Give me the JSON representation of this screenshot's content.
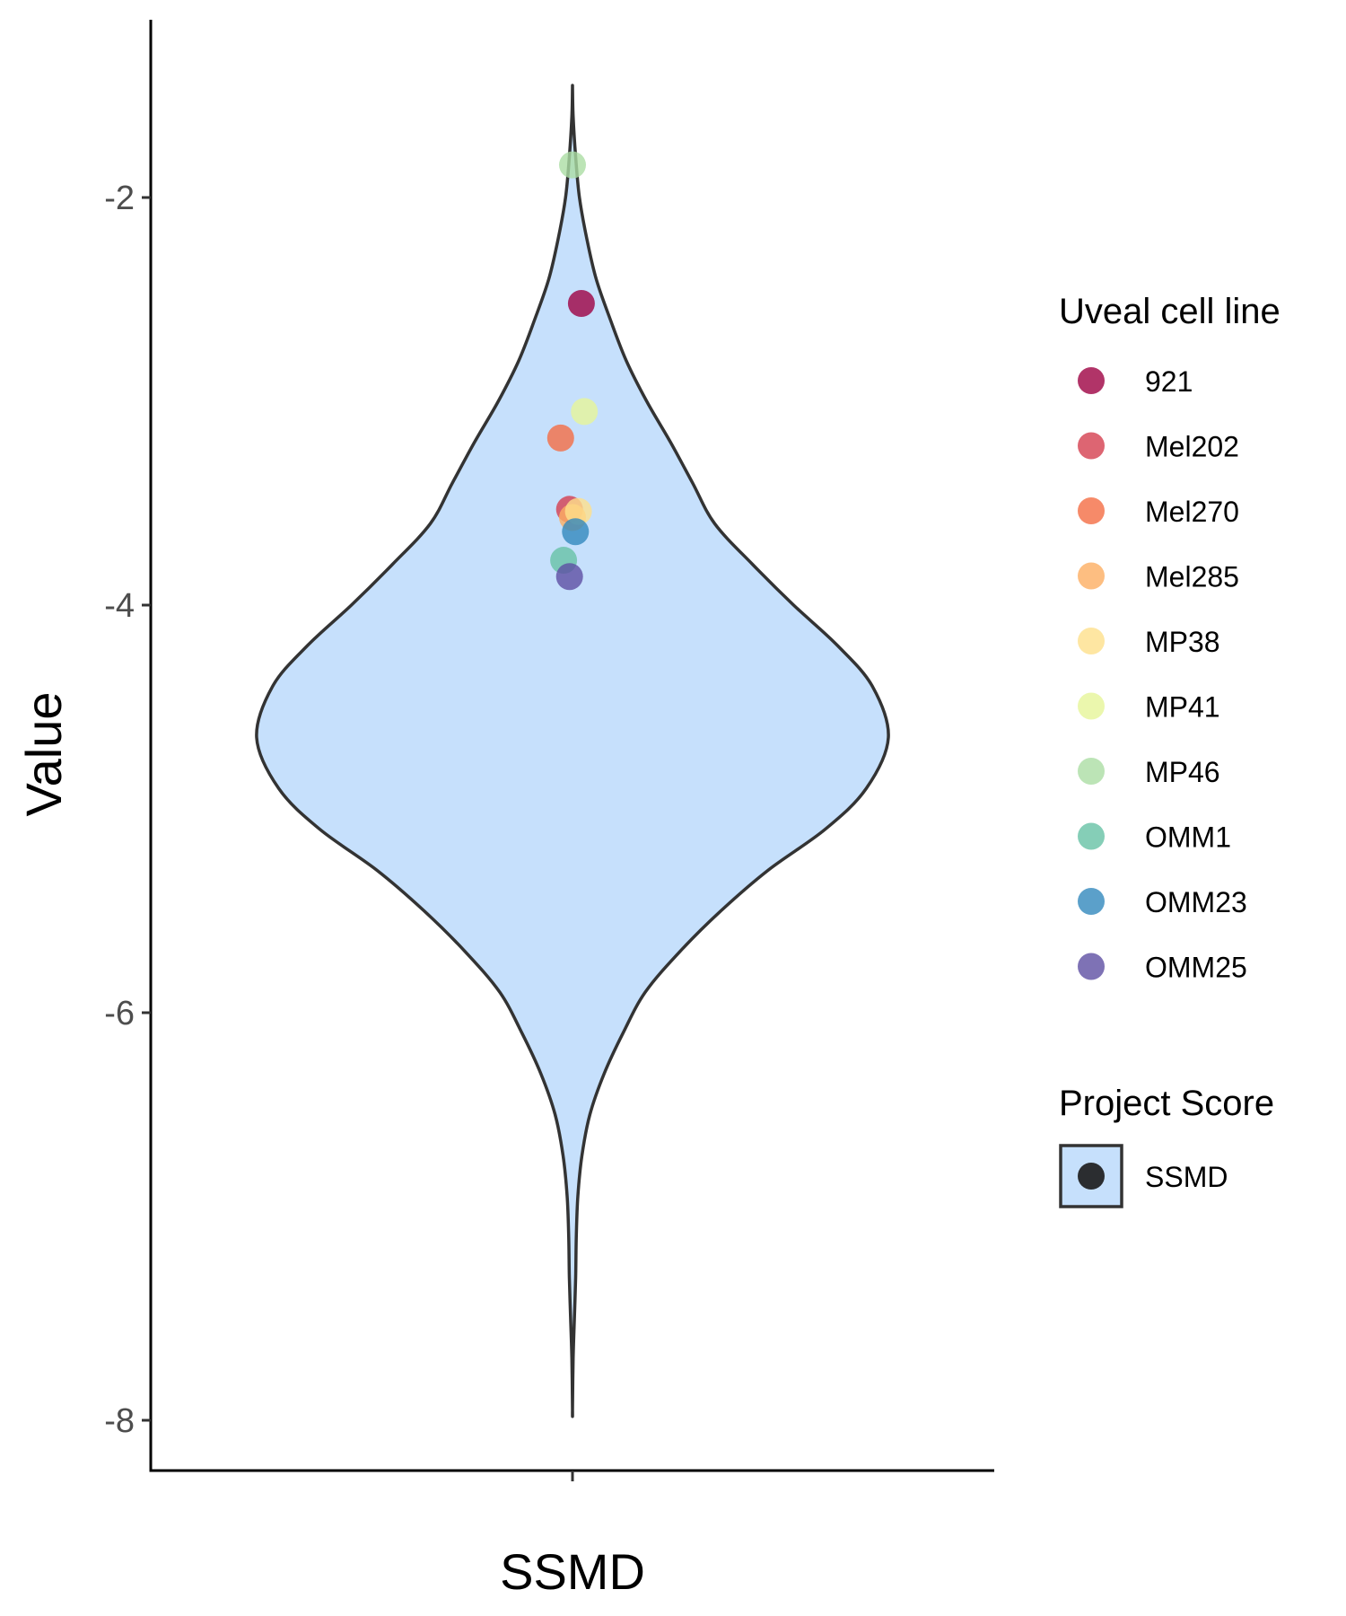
{
  "chart_data": {
    "type": "violin",
    "xlabel": "SSMD",
    "ylabel": "Value",
    "categories": [
      "SSMD"
    ],
    "ylim": [
      -8.25,
      -0.9
    ],
    "yticks": [
      -2,
      -4,
      -6,
      -8
    ],
    "ytick_labels": [
      "-2",
      "-4",
      "-6",
      "-8"
    ],
    "violin": {
      "category": "SSMD",
      "fill": "#c6e0fc",
      "stroke": "#333333",
      "y_min": -7.95,
      "y_max": -1.45,
      "density_profile": [
        {
          "y": -1.45,
          "w": 0.0
        },
        {
          "y": -1.6,
          "w": 0.002
        },
        {
          "y": -1.8,
          "w": 0.01
        },
        {
          "y": -2.0,
          "w": 0.022
        },
        {
          "y": -2.2,
          "w": 0.045
        },
        {
          "y": -2.4,
          "w": 0.075
        },
        {
          "y": -2.6,
          "w": 0.12
        },
        {
          "y": -2.8,
          "w": 0.17
        },
        {
          "y": -3.0,
          "w": 0.235
        },
        {
          "y": -3.2,
          "w": 0.31
        },
        {
          "y": -3.4,
          "w": 0.38
        },
        {
          "y": -3.6,
          "w": 0.45
        },
        {
          "y": -3.8,
          "w": 0.57
        },
        {
          "y": -4.0,
          "w": 0.7
        },
        {
          "y": -4.2,
          "w": 0.84
        },
        {
          "y": -4.4,
          "w": 0.95
        },
        {
          "y": -4.65,
          "w": 1.0
        },
        {
          "y": -4.9,
          "w": 0.93
        },
        {
          "y": -5.1,
          "w": 0.8
        },
        {
          "y": -5.3,
          "w": 0.62
        },
        {
          "y": -5.5,
          "w": 0.47
        },
        {
          "y": -5.7,
          "w": 0.34
        },
        {
          "y": -5.9,
          "w": 0.23
        },
        {
          "y": -6.1,
          "w": 0.16
        },
        {
          "y": -6.3,
          "w": 0.1
        },
        {
          "y": -6.5,
          "w": 0.055
        },
        {
          "y": -6.7,
          "w": 0.03
        },
        {
          "y": -6.9,
          "w": 0.017
        },
        {
          "y": -7.1,
          "w": 0.012
        },
        {
          "y": -7.3,
          "w": 0.01
        },
        {
          "y": -7.5,
          "w": 0.006
        },
        {
          "y": -7.7,
          "w": 0.002
        },
        {
          "y": -7.95,
          "w": 0.0
        }
      ]
    },
    "points": [
      {
        "cell_line": "921",
        "y": -2.52,
        "jitter": 0.03
      },
      {
        "cell_line": "Mel202",
        "y": -3.53,
        "jitter": -0.01
      },
      {
        "cell_line": "Mel270",
        "y": -3.18,
        "jitter": -0.04
      },
      {
        "cell_line": "Mel285",
        "y": -3.57,
        "jitter": 0.0
      },
      {
        "cell_line": "MP38",
        "y": -3.54,
        "jitter": 0.02
      },
      {
        "cell_line": "MP41",
        "y": -3.05,
        "jitter": 0.04
      },
      {
        "cell_line": "MP46",
        "y": -1.84,
        "jitter": 0.0
      },
      {
        "cell_line": "OMM1",
        "y": -3.78,
        "jitter": -0.03
      },
      {
        "cell_line": "OMM23",
        "y": -3.64,
        "jitter": 0.01
      },
      {
        "cell_line": "OMM25",
        "y": -3.86,
        "jitter": -0.01
      }
    ],
    "legend_placement": "right",
    "legends": [
      {
        "title": "Uveal cell line",
        "entries": [
          {
            "label": "921",
            "color": "#9e0142"
          },
          {
            "label": "Mel202",
            "color": "#d53e4f"
          },
          {
            "label": "Mel270",
            "color": "#f46d43"
          },
          {
            "label": "Mel285",
            "color": "#fdae61"
          },
          {
            "label": "MP38",
            "color": "#fee08b"
          },
          {
            "label": "MP41",
            "color": "#e6f598"
          },
          {
            "label": "MP46",
            "color": "#abdda4"
          },
          {
            "label": "OMM1",
            "color": "#66c2a5"
          },
          {
            "label": "OMM23",
            "color": "#3288bd"
          },
          {
            "label": "OMM25",
            "color": "#5e4fa2"
          }
        ]
      },
      {
        "title": "Project Score",
        "entries": [
          {
            "label": "SSMD",
            "fill": "#c6e0fc",
            "point_color": "#1a1a1a"
          }
        ]
      }
    ],
    "grid": false,
    "point_alpha": 0.8
  }
}
